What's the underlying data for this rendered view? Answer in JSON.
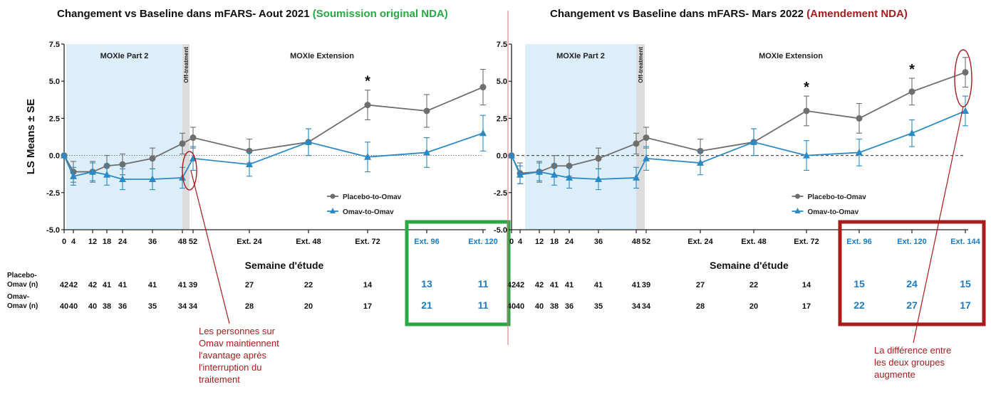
{
  "colors": {
    "placebo": "#6e6e6e",
    "omav": "#2b8ac6",
    "green": "#2aa845",
    "red": "#a51d1d",
    "shade_blue": "#dceefa",
    "shade_gray": "#dcdcdc",
    "table_blue": "#1f7bbf"
  },
  "chart_data": [
    {
      "type": "line",
      "title": "Changement vs Baseline dans mFARS- Aout 2021",
      "title_tag": "(Soumission original NDA)",
      "ylabel": "LS Means ± SE",
      "xlabel": "Semaine d'étude",
      "ylim": [
        -5.0,
        7.5
      ],
      "yticks": [
        "7.5",
        "5.0",
        "2.5",
        "0.0",
        "-2.5",
        "-5.0"
      ],
      "x_ticks": [
        "0",
        "4",
        "12",
        "18",
        "24",
        "36",
        "48",
        "52",
        "Ext. 24",
        "Ext. 48",
        "Ext. 72",
        "Ext. 96",
        "Ext. 120"
      ],
      "regions": {
        "part2": "MOXIe Part 2",
        "off": "Off-treatment",
        "extension": "MOXIe Extension"
      },
      "legend": [
        "Placebo-to-Omav",
        "Omav-to-Omav"
      ],
      "legend_position": "lower-right",
      "series": [
        {
          "name": "Placebo-to-Omav",
          "x": [
            "0",
            "4",
            "12",
            "18",
            "24",
            "36",
            "48",
            "52",
            "Ext. 24",
            "Ext. 48",
            "Ext. 72",
            "Ext. 96",
            "Ext. 120"
          ],
          "values": [
            0,
            -1.1,
            -1.1,
            -0.7,
            -0.6,
            -0.2,
            0.8,
            1.2,
            0.3,
            0.9,
            3.4,
            3.0,
            4.6
          ],
          "se": [
            0,
            0.7,
            0.7,
            0.7,
            0.7,
            0.7,
            0.7,
            0.7,
            0.8,
            0.9,
            1.0,
            1.1,
            1.2
          ]
        },
        {
          "name": "Omav-to-Omav",
          "x": [
            "0",
            "4",
            "12",
            "18",
            "24",
            "36",
            "48",
            "52",
            "Ext. 24",
            "Ext. 48",
            "Ext. 72",
            "Ext. 96",
            "Ext. 120"
          ],
          "values": [
            0,
            -1.4,
            -1.1,
            -1.3,
            -1.6,
            -1.6,
            -1.5,
            -0.2,
            -0.6,
            0.9,
            -0.1,
            0.2,
            1.5
          ],
          "se": [
            0,
            0.6,
            0.6,
            0.7,
            0.7,
            0.7,
            0.7,
            0.8,
            0.8,
            0.9,
            1.0,
            1.0,
            1.2
          ]
        }
      ],
      "significance": [
        "Ext. 72"
      ],
      "table": {
        "rows": [
          {
            "label": "Placebo-\nOmav (n)",
            "values": [
              "42",
              "42",
              "42",
              "41",
              "41",
              "41",
              "41",
              "39",
              "27",
              "22",
              "14",
              "13",
              "11"
            ]
          },
          {
            "label": "Omav-\nOmav (n)",
            "values": [
              "40",
              "40",
              "40",
              "38",
              "36",
              "35",
              "34",
              "34",
              "28",
              "20",
              "17",
              "21",
              "11"
            ]
          }
        ]
      },
      "highlight": [
        "Ext. 96",
        "Ext. 120"
      ],
      "annotation": "Les personnes sur\nOmav maintiennent\nl'avantage après\nl'interruption du\ntraitement"
    },
    {
      "type": "line",
      "title": "Changement vs Baseline dans mFARS- Mars 2022",
      "title_tag": "(Amendement NDA)",
      "ylabel": "",
      "xlabel": "Semaine d'étude",
      "ylim": [
        -5.0,
        7.5
      ],
      "yticks": [
        "7.5",
        "5.0",
        "2.5",
        "0.0",
        "-2.5",
        "-5.0"
      ],
      "x_ticks": [
        "0",
        "4",
        "12",
        "18",
        "24",
        "36",
        "48",
        "52",
        "Ext. 24",
        "Ext. 48",
        "Ext. 72",
        "Ext. 96",
        "Ext. 120",
        "Ext. 144"
      ],
      "regions": {
        "part2": "MOXIe Part 2",
        "off": "Off-treatment",
        "extension": "MOXIe Extension"
      },
      "legend": [
        "Placebo-to-Omav",
        "Omav-to-Omav"
      ],
      "legend_position": "lower-right",
      "series": [
        {
          "name": "Placebo-to-Omav",
          "x": [
            "0",
            "4",
            "12",
            "18",
            "24",
            "36",
            "48",
            "52",
            "Ext. 24",
            "Ext. 48",
            "Ext. 72",
            "Ext. 96",
            "Ext. 120",
            "Ext. 144"
          ],
          "values": [
            0,
            -1.2,
            -1.1,
            -0.7,
            -0.7,
            -0.2,
            0.8,
            1.2,
            0.3,
            0.9,
            3.0,
            2.5,
            4.3,
            5.6
          ],
          "se": [
            0,
            0.7,
            0.7,
            0.7,
            0.7,
            0.7,
            0.7,
            0.7,
            0.8,
            0.9,
            1.0,
            1.0,
            0.9,
            1.0
          ]
        },
        {
          "name": "Omav-to-Omav",
          "x": [
            "0",
            "4",
            "12",
            "18",
            "24",
            "36",
            "48",
            "52",
            "Ext. 24",
            "Ext. 48",
            "Ext. 72",
            "Ext. 96",
            "Ext. 120",
            "Ext. 144"
          ],
          "values": [
            0,
            -1.3,
            -1.1,
            -1.3,
            -1.5,
            -1.6,
            -1.5,
            -0.2,
            -0.5,
            0.9,
            0.0,
            0.2,
            1.5,
            3.0
          ],
          "se": [
            0,
            0.6,
            0.6,
            0.7,
            0.7,
            0.7,
            0.7,
            0.8,
            0.8,
            0.9,
            1.0,
            0.9,
            0.9,
            1.0
          ]
        }
      ],
      "significance": [
        "Ext. 72",
        "Ext. 120"
      ],
      "table": {
        "rows": [
          {
            "label": "",
            "values": [
              "42",
              "42",
              "42",
              "41",
              "41",
              "41",
              "41",
              "39",
              "27",
              "22",
              "14",
              "15",
              "24",
              "15"
            ]
          },
          {
            "label": "",
            "values": [
              "40",
              "40",
              "40",
              "38",
              "36",
              "35",
              "34",
              "34",
              "28",
              "20",
              "17",
              "22",
              "27",
              "17"
            ]
          }
        ]
      },
      "highlight": [
        "Ext. 96",
        "Ext. 120",
        "Ext. 144"
      ],
      "annotation": "La différence entre\nles deux groupes\naugmente"
    }
  ]
}
